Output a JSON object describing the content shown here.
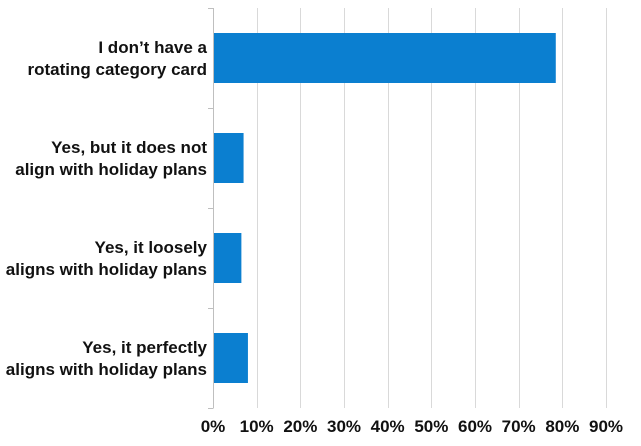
{
  "chart_data": {
    "type": "bar",
    "orientation": "horizontal",
    "categories": [
      [
        "I don’t have a",
        "rotating category card"
      ],
      [
        "Yes, but it does not",
        "align with holiday plans"
      ],
      [
        "Yes, it loosely",
        "aligns with holiday plans"
      ],
      [
        "Yes, it perfectly",
        "aligns with holiday plans"
      ]
    ],
    "values": [
      78.5,
      7,
      6.5,
      8
    ],
    "xlim": [
      0,
      90
    ],
    "xticks": [
      0,
      10,
      20,
      30,
      40,
      50,
      60,
      70,
      80,
      90
    ],
    "tick_format": "{v}%",
    "bar_color": "#0b7fd0",
    "grid": true,
    "title": "",
    "xlabel": "",
    "ylabel": ""
  }
}
